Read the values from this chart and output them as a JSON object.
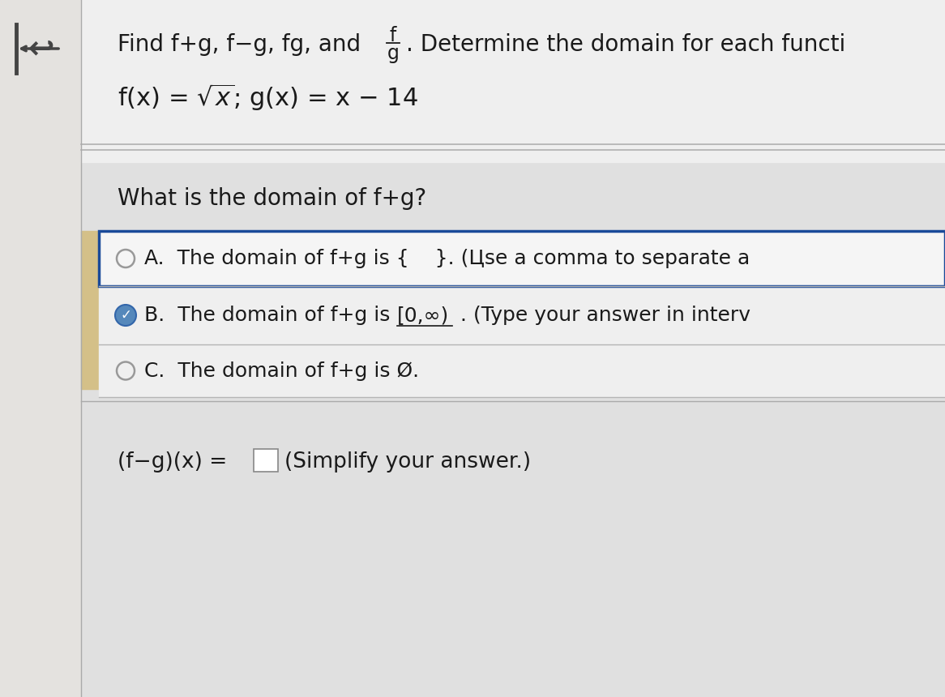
{
  "bg_color": "#dcdcdc",
  "left_panel_color": "#c8c0a8",
  "content_bg": "#e8e8e8",
  "text_color": "#1a1a1a",
  "blue_border_color": "#1a4a99",
  "tan_accent": "#d4c088",
  "header_bg": "#ececec",
  "option_bg": "#e8e8e8",
  "white": "#ffffff",
  "separator_color": "#aaaaaa",
  "radio_border": "#999999",
  "selected_fill": "#3a6abf",
  "frac_num": "f",
  "frac_den": "g",
  "header_pre": "Find f+g, f",
  "header_mid": "g, fg, and",
  "header_post": ". Determine the domain for each functi",
  "function_line": "f(x) = √x; g(x) = x − 14",
  "question": "What is the domain of f+g?",
  "optA_pre": "A.",
  "optA_text": "The domain of f+g is {    }. (Цse a comma to separate a",
  "optB_pre": "B.",
  "optB_text1": "The domain of f+g is ",
  "optB_interval": "[0,∞)",
  "optB_text2": " . (Type your answer in interv",
  "optC_pre": "C.",
  "optC_text": "The domain of f+g is Ø.",
  "last_pre": "(f−g)(x) =",
  "last_post": "(Simplify your answer.)"
}
